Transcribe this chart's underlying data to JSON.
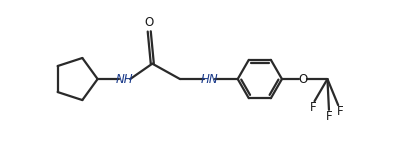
{
  "background_color": "#ffffff",
  "line_color": "#2a2a2a",
  "text_color": "#1a1a1a",
  "nh_color": "#1a3a8a",
  "line_width": 1.6,
  "font_size": 8.5,
  "fig_width": 4.06,
  "fig_height": 1.55,
  "dpi": 100,
  "xlim": [
    0,
    11
  ],
  "ylim": [
    -1.8,
    3.2
  ]
}
